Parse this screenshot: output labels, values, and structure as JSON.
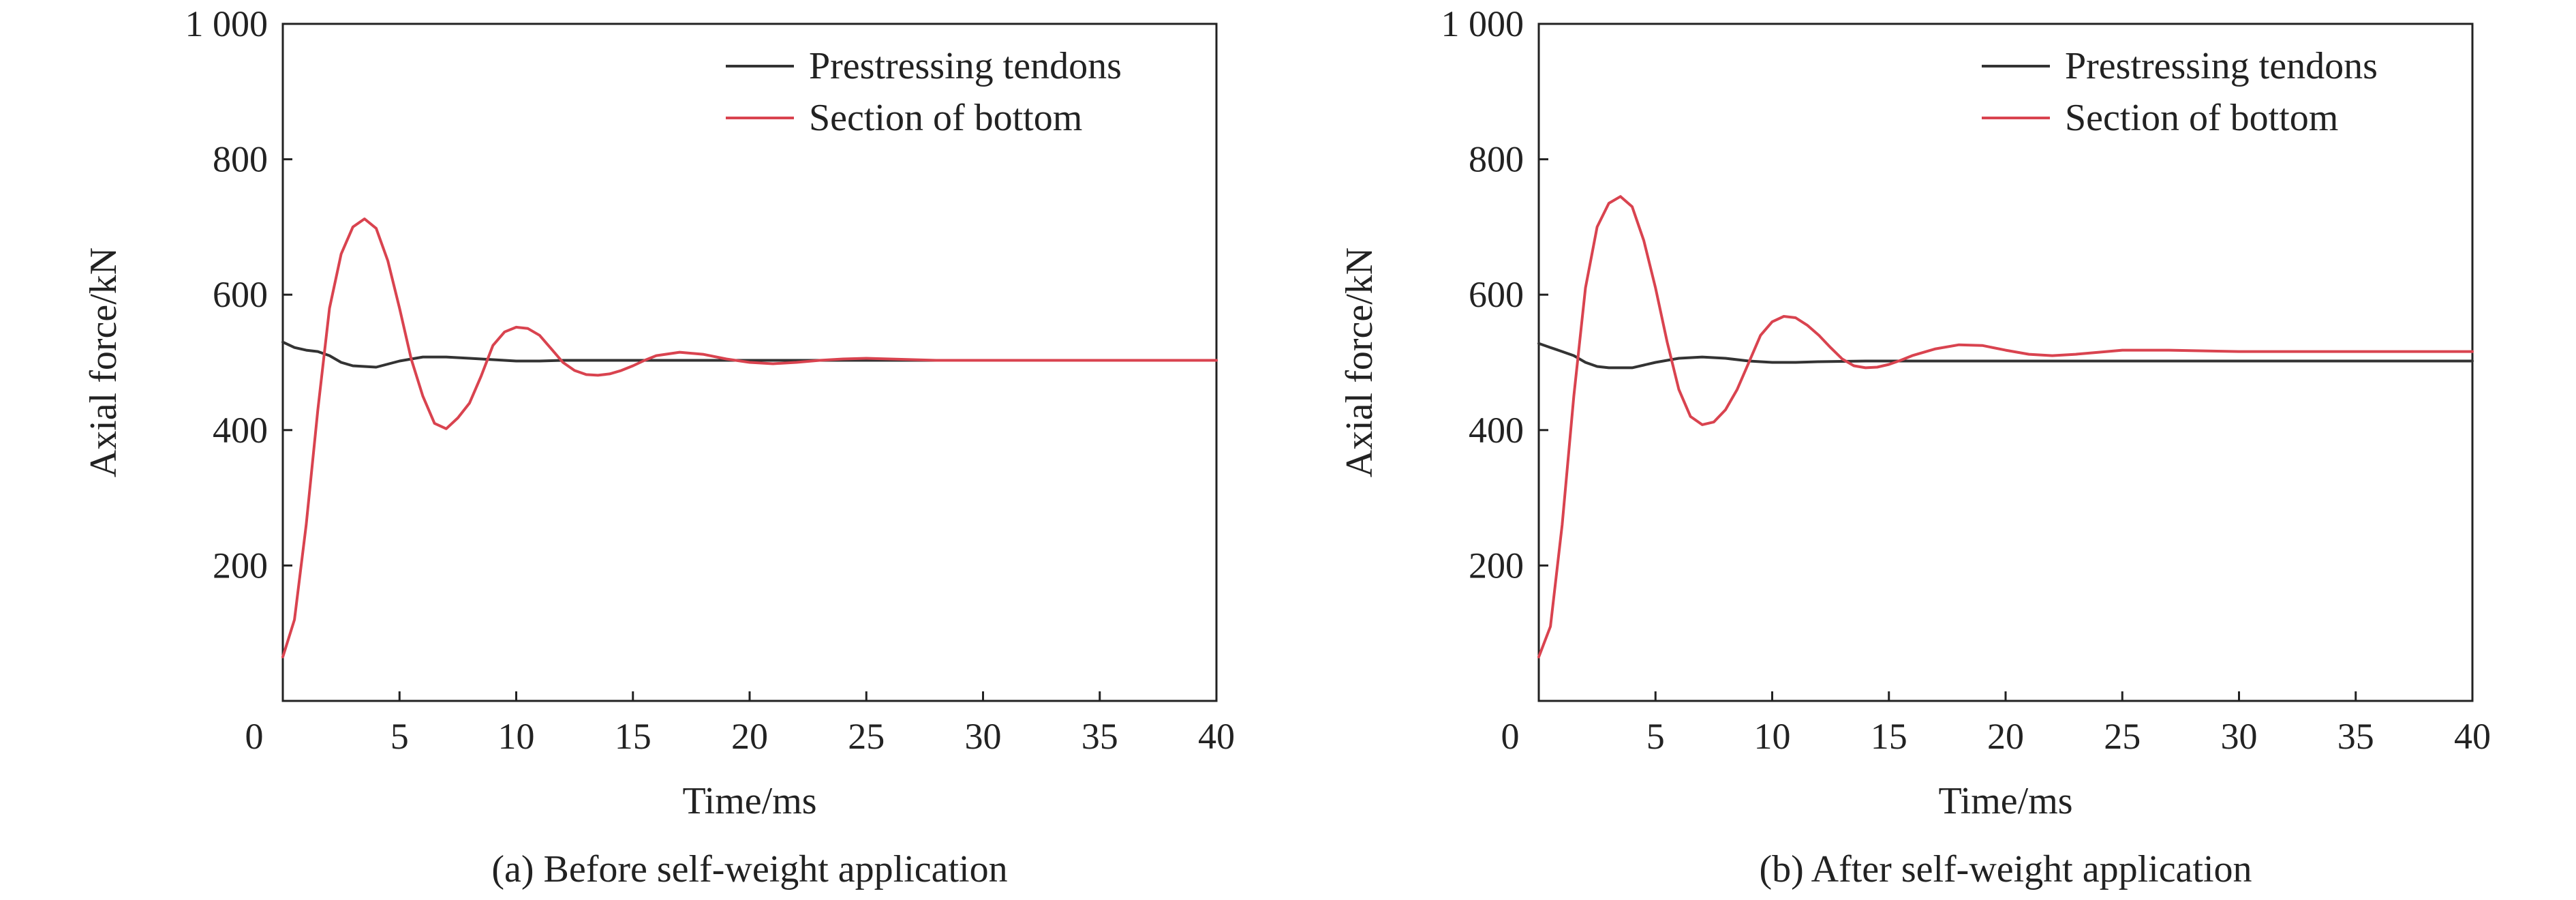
{
  "colors": {
    "prestressing": "#333333",
    "bottom": "#d9434f",
    "axis": "#222222"
  },
  "chart_data": [
    {
      "type": "line",
      "caption": "(a) Before self-weight application",
      "xlabel": "Time/ms",
      "ylabel": "Axial force/kN",
      "xlim": [
        0,
        40
      ],
      "ylim": [
        0,
        1000
      ],
      "x_ticks": [
        0,
        5,
        10,
        15,
        20,
        25,
        30,
        35,
        40
      ],
      "y_ticks": [
        200,
        400,
        600,
        800,
        1000
      ],
      "x_tick_labels": [
        "0",
        "5",
        "10",
        "15",
        "20",
        "25",
        "30",
        "35",
        "40"
      ],
      "y_tick_labels": [
        "200",
        "400",
        "600",
        "800",
        "1 000"
      ],
      "legend_position": "top-right",
      "series": [
        {
          "name": "Prestressing tendons",
          "color": "#333333",
          "x": [
            0,
            0.5,
            1,
            1.5,
            2,
            2.5,
            3,
            4,
            5,
            6,
            7,
            8,
            9,
            10,
            11,
            12,
            14,
            16,
            18,
            20,
            25,
            30,
            35,
            40
          ],
          "y": [
            530,
            522,
            518,
            516,
            510,
            500,
            495,
            493,
            502,
            508,
            508,
            506,
            504,
            502,
            502,
            503,
            503,
            503,
            503,
            503,
            503,
            503,
            503,
            503
          ]
        },
        {
          "name": "Section of bottom",
          "color": "#d9434f",
          "x": [
            0,
            0.5,
            1,
            1.5,
            2,
            2.5,
            3,
            3.5,
            4,
            4.5,
            5,
            5.5,
            6,
            6.5,
            7,
            7.5,
            8,
            8.5,
            9,
            9.5,
            10,
            10.5,
            11,
            11.5,
            12,
            12.5,
            13,
            13.5,
            14,
            14.5,
            15,
            15.5,
            16,
            17,
            18,
            19,
            20,
            21,
            22,
            23,
            24,
            25,
            26,
            28,
            30,
            35,
            40
          ],
          "y": [
            65,
            120,
            260,
            430,
            580,
            660,
            700,
            712,
            698,
            650,
            580,
            505,
            450,
            410,
            402,
            418,
            440,
            480,
            525,
            545,
            552,
            550,
            540,
            520,
            500,
            488,
            482,
            481,
            483,
            488,
            495,
            503,
            510,
            515,
            512,
            505,
            500,
            498,
            500,
            503,
            505,
            506,
            505,
            503,
            503,
            503,
            503
          ]
        }
      ]
    },
    {
      "type": "line",
      "caption": "(b) After self-weight application",
      "xlabel": "Time/ms",
      "ylabel": "Axial force/kN",
      "xlim": [
        0,
        40
      ],
      "ylim": [
        0,
        1000
      ],
      "x_ticks": [
        0,
        5,
        10,
        15,
        20,
        25,
        30,
        35,
        40
      ],
      "y_ticks": [
        200,
        400,
        600,
        800,
        1000
      ],
      "x_tick_labels": [
        "0",
        "5",
        "10",
        "15",
        "20",
        "25",
        "30",
        "35",
        "40"
      ],
      "y_tick_labels": [
        "200",
        "400",
        "600",
        "800",
        "1 000"
      ],
      "legend_position": "top-right",
      "series": [
        {
          "name": "Prestressing tendons",
          "color": "#333333",
          "x": [
            0,
            0.5,
            1,
            1.5,
            2,
            2.5,
            3,
            4,
            5,
            6,
            7,
            8,
            9,
            10,
            11,
            12,
            14,
            16,
            18,
            20,
            25,
            30,
            35,
            40
          ],
          "y": [
            528,
            522,
            516,
            510,
            500,
            494,
            492,
            492,
            500,
            506,
            508,
            506,
            502,
            500,
            500,
            501,
            502,
            502,
            502,
            502,
            502,
            502,
            502,
            502
          ]
        },
        {
          "name": "Section of bottom",
          "color": "#d9434f",
          "x": [
            0,
            0.5,
            1,
            1.5,
            2,
            2.5,
            3,
            3.5,
            4,
            4.5,
            5,
            5.5,
            6,
            6.5,
            7,
            7.5,
            8,
            8.5,
            9,
            9.5,
            10,
            10.5,
            11,
            11.5,
            12,
            12.5,
            13,
            13.5,
            14,
            14.5,
            15,
            15.5,
            16,
            17,
            18,
            19,
            20,
            21,
            22,
            23,
            24,
            25,
            27,
            30,
            35,
            40
          ],
          "y": [
            65,
            110,
            260,
            450,
            610,
            700,
            735,
            745,
            730,
            680,
            610,
            530,
            460,
            420,
            408,
            412,
            430,
            460,
            500,
            540,
            560,
            568,
            566,
            555,
            540,
            522,
            505,
            495,
            492,
            493,
            497,
            503,
            510,
            520,
            526,
            525,
            518,
            512,
            510,
            512,
            515,
            518,
            518,
            516,
            516,
            516
          ]
        }
      ]
    }
  ]
}
